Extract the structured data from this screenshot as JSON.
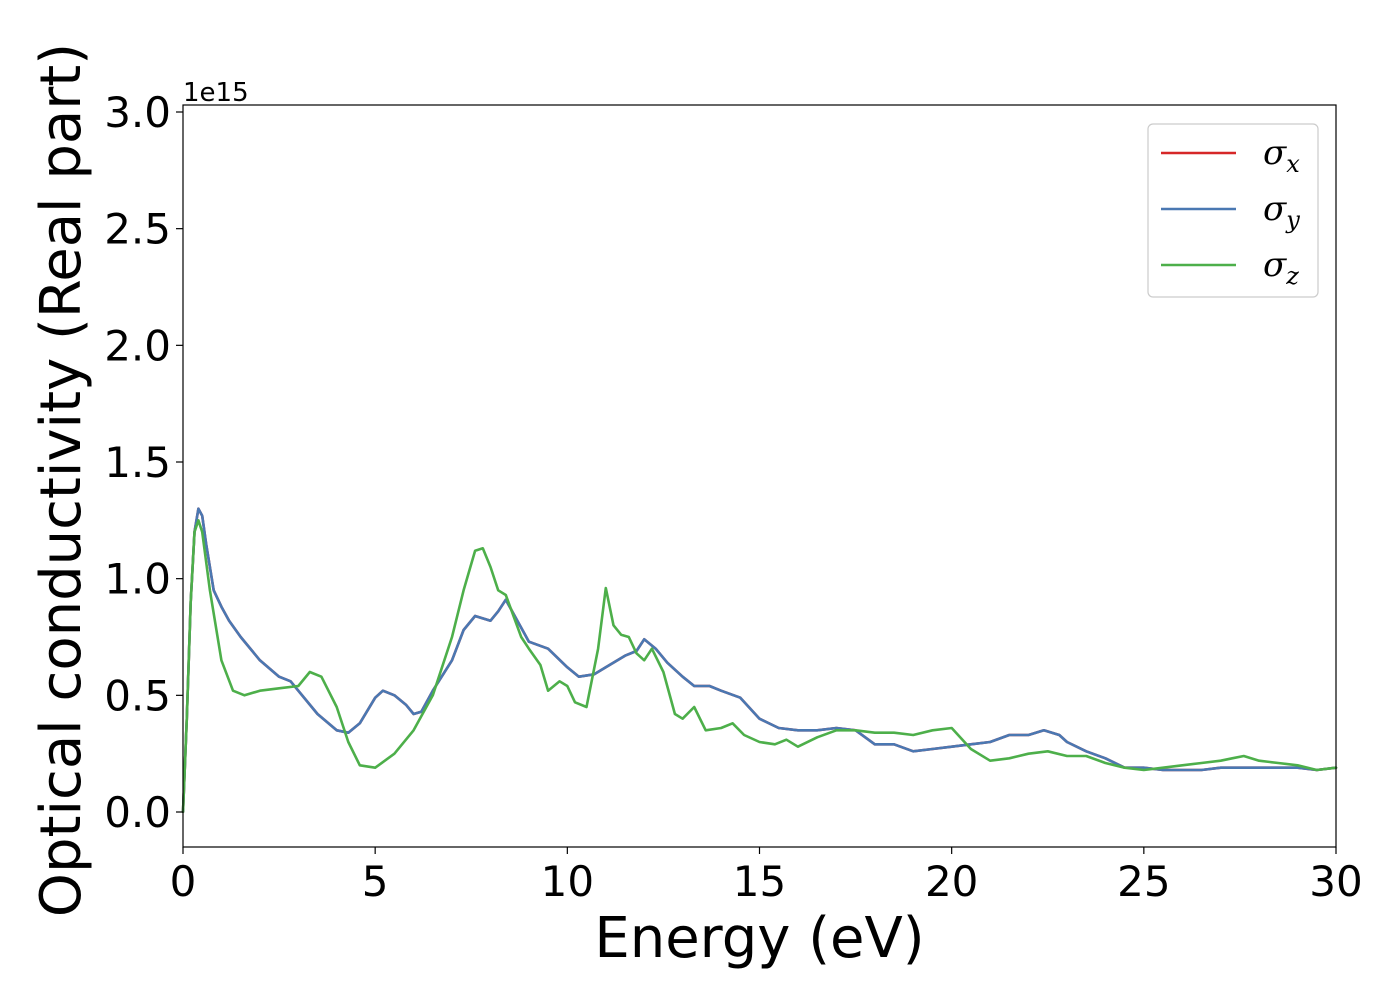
{
  "chart_data": {
    "type": "line",
    "xlabel": "Energy (eV)",
    "ylabel": "Optical conductivity (Real part)",
    "y_offset_label": "1e15",
    "xlim": [
      0,
      30
    ],
    "ylim": [
      -0.15,
      3.03
    ],
    "x_ticks": [
      0,
      5,
      10,
      15,
      20,
      25,
      30
    ],
    "x_tick_labels": [
      "0",
      "5",
      "10",
      "15",
      "20",
      "25",
      "30"
    ],
    "y_ticks": [
      0.0,
      0.5,
      1.0,
      1.5,
      2.0,
      2.5,
      3.0
    ],
    "y_tick_labels": [
      "0.0",
      "0.5",
      "1.0",
      "1.5",
      "2.0",
      "2.5",
      "3.0"
    ],
    "grid": false,
    "legend_position": "top-right",
    "series": [
      {
        "name": "σx",
        "legend_base": "σ",
        "legend_sub": "x",
        "color": "#d62728",
        "x": [
          0,
          0.1,
          0.2,
          0.3,
          0.4,
          0.5,
          0.6,
          0.8,
          1.0,
          1.2,
          1.5,
          2.0,
          2.5,
          2.8,
          3.0,
          3.5,
          4.0,
          4.3,
          4.6,
          5.0,
          5.2,
          5.5,
          5.8,
          6.0,
          6.2,
          6.5,
          7.0,
          7.3,
          7.6,
          8.0,
          8.2,
          8.4,
          8.6,
          9.0,
          9.5,
          10.0,
          10.3,
          10.7,
          11.0,
          11.5,
          11.8,
          12.0,
          12.3,
          12.6,
          13.0,
          13.3,
          13.7,
          14.0,
          14.5,
          15.0,
          15.5,
          16.0,
          16.5,
          17.0,
          17.5,
          18.0,
          18.5,
          19.0,
          19.5,
          20.0,
          20.5,
          21.0,
          21.5,
          22.0,
          22.4,
          22.8,
          23.0,
          23.5,
          24.0,
          24.5,
          25.0,
          25.5,
          26.0,
          26.5,
          27.0,
          27.5,
          28.0,
          28.5,
          29.0,
          29.5,
          30.0
        ],
        "y": [
          0.0,
          0.4,
          0.9,
          1.2,
          1.3,
          1.27,
          1.15,
          0.95,
          0.88,
          0.82,
          0.75,
          0.65,
          0.58,
          0.56,
          0.52,
          0.42,
          0.35,
          0.34,
          0.38,
          0.49,
          0.52,
          0.5,
          0.46,
          0.42,
          0.43,
          0.52,
          0.65,
          0.78,
          0.84,
          0.82,
          0.86,
          0.91,
          0.85,
          0.73,
          0.7,
          0.62,
          0.58,
          0.59,
          0.62,
          0.67,
          0.69,
          0.74,
          0.7,
          0.64,
          0.58,
          0.54,
          0.54,
          0.52,
          0.49,
          0.4,
          0.36,
          0.35,
          0.35,
          0.36,
          0.35,
          0.29,
          0.29,
          0.26,
          0.27,
          0.28,
          0.29,
          0.3,
          0.33,
          0.33,
          0.35,
          0.33,
          0.3,
          0.26,
          0.23,
          0.19,
          0.19,
          0.18,
          0.18,
          0.18,
          0.19,
          0.19,
          0.19,
          0.19,
          0.19,
          0.18,
          0.19
        ]
      },
      {
        "name": "σy",
        "legend_base": "σ",
        "legend_sub": "y",
        "color": "#4a78b2",
        "x": [
          0,
          0.1,
          0.2,
          0.3,
          0.4,
          0.5,
          0.6,
          0.8,
          1.0,
          1.2,
          1.5,
          2.0,
          2.5,
          2.8,
          3.0,
          3.5,
          4.0,
          4.3,
          4.6,
          5.0,
          5.2,
          5.5,
          5.8,
          6.0,
          6.2,
          6.5,
          7.0,
          7.3,
          7.6,
          8.0,
          8.2,
          8.4,
          8.6,
          9.0,
          9.5,
          10.0,
          10.3,
          10.7,
          11.0,
          11.5,
          11.8,
          12.0,
          12.3,
          12.6,
          13.0,
          13.3,
          13.7,
          14.0,
          14.5,
          15.0,
          15.5,
          16.0,
          16.5,
          17.0,
          17.5,
          18.0,
          18.5,
          19.0,
          19.5,
          20.0,
          20.5,
          21.0,
          21.5,
          22.0,
          22.4,
          22.8,
          23.0,
          23.5,
          24.0,
          24.5,
          25.0,
          25.5,
          26.0,
          26.5,
          27.0,
          27.5,
          28.0,
          28.5,
          29.0,
          29.5,
          30.0
        ],
        "y": [
          0.0,
          0.4,
          0.9,
          1.2,
          1.3,
          1.27,
          1.15,
          0.95,
          0.88,
          0.82,
          0.75,
          0.65,
          0.58,
          0.56,
          0.52,
          0.42,
          0.35,
          0.34,
          0.38,
          0.49,
          0.52,
          0.5,
          0.46,
          0.42,
          0.43,
          0.52,
          0.65,
          0.78,
          0.84,
          0.82,
          0.86,
          0.91,
          0.85,
          0.73,
          0.7,
          0.62,
          0.58,
          0.59,
          0.62,
          0.67,
          0.69,
          0.74,
          0.7,
          0.64,
          0.58,
          0.54,
          0.54,
          0.52,
          0.49,
          0.4,
          0.36,
          0.35,
          0.35,
          0.36,
          0.35,
          0.29,
          0.29,
          0.26,
          0.27,
          0.28,
          0.29,
          0.3,
          0.33,
          0.33,
          0.35,
          0.33,
          0.3,
          0.26,
          0.23,
          0.19,
          0.19,
          0.18,
          0.18,
          0.18,
          0.19,
          0.19,
          0.19,
          0.19,
          0.19,
          0.18,
          0.19
        ]
      },
      {
        "name": "σz",
        "legend_base": "σ",
        "legend_sub": "z",
        "color": "#4daf4a",
        "x": [
          0,
          0.1,
          0.2,
          0.3,
          0.4,
          0.5,
          0.7,
          1.0,
          1.3,
          1.6,
          2.0,
          2.5,
          3.0,
          3.3,
          3.6,
          4.0,
          4.3,
          4.6,
          5.0,
          5.5,
          6.0,
          6.5,
          7.0,
          7.3,
          7.6,
          7.8,
          8.0,
          8.2,
          8.4,
          8.6,
          8.8,
          9.0,
          9.3,
          9.5,
          9.8,
          10.0,
          10.2,
          10.5,
          10.8,
          11.0,
          11.2,
          11.4,
          11.6,
          11.8,
          12.0,
          12.2,
          12.5,
          12.8,
          13.0,
          13.3,
          13.6,
          14.0,
          14.3,
          14.6,
          15.0,
          15.4,
          15.7,
          16.0,
          16.5,
          17.0,
          17.5,
          18.0,
          18.5,
          19.0,
          19.5,
          20.0,
          20.5,
          21.0,
          21.5,
          22.0,
          22.5,
          23.0,
          23.5,
          24.0,
          24.5,
          25.0,
          25.5,
          26.0,
          26.5,
          27.0,
          27.3,
          27.6,
          28.0,
          28.5,
          29.0,
          29.5,
          30.0
        ],
        "y": [
          0.0,
          0.4,
          0.9,
          1.2,
          1.25,
          1.2,
          0.95,
          0.65,
          0.52,
          0.5,
          0.52,
          0.53,
          0.54,
          0.6,
          0.58,
          0.45,
          0.3,
          0.2,
          0.19,
          0.25,
          0.35,
          0.5,
          0.75,
          0.95,
          1.12,
          1.13,
          1.05,
          0.95,
          0.93,
          0.84,
          0.75,
          0.7,
          0.63,
          0.52,
          0.56,
          0.54,
          0.47,
          0.45,
          0.7,
          0.96,
          0.8,
          0.76,
          0.75,
          0.68,
          0.65,
          0.7,
          0.6,
          0.42,
          0.4,
          0.45,
          0.35,
          0.36,
          0.38,
          0.33,
          0.3,
          0.29,
          0.31,
          0.28,
          0.32,
          0.35,
          0.35,
          0.34,
          0.34,
          0.33,
          0.35,
          0.36,
          0.27,
          0.22,
          0.23,
          0.25,
          0.26,
          0.24,
          0.24,
          0.21,
          0.19,
          0.18,
          0.19,
          0.2,
          0.21,
          0.22,
          0.23,
          0.24,
          0.22,
          0.21,
          0.2,
          0.18,
          0.19
        ]
      }
    ]
  }
}
